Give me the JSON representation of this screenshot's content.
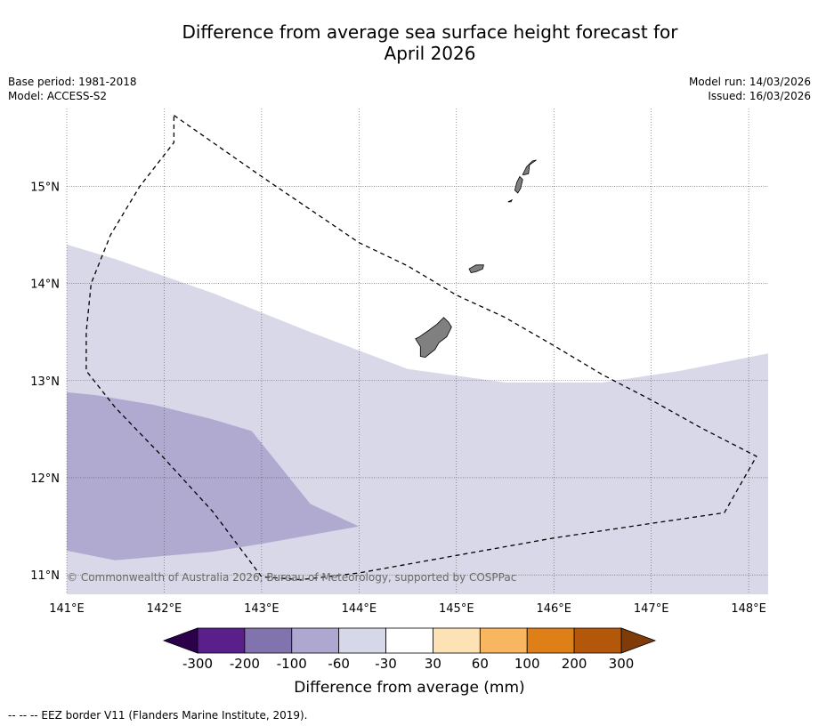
{
  "title": {
    "line1": "Difference from average sea surface height forecast for",
    "line2": "April 2026"
  },
  "meta": {
    "base_period": "Base period: 1981-2018",
    "model": "Model: ACCESS-S2",
    "model_run": "Model run: 14/03/2026",
    "issued": "Issued: 16/03/2026"
  },
  "copyright": "© Commonwealth of Australia 2026, Bureau of Meteorology, supported by COSPPac",
  "footnote": "-- -- -- EEZ border V11 (Flanders Marine Institute, 2019).",
  "colors": {
    "ocean_white": "#ffffff",
    "band_-60_-30": "#d8d8e9",
    "band_-100_-60": "#b0aad0",
    "land": "#808080",
    "eez_line": "#000000"
  },
  "chart_data": {
    "type": "heatmap",
    "title": "Difference from average sea surface height forecast for April 2026",
    "variable": "Sea surface height anomaly",
    "units": "mm",
    "xlim": [
      141.0,
      148.2
    ],
    "ylim": [
      10.8,
      15.8
    ],
    "x_ticks": [
      141,
      142,
      143,
      144,
      145,
      146,
      147,
      148
    ],
    "x_tick_labels": [
      "141°E",
      "142°E",
      "143°E",
      "144°E",
      "145°E",
      "146°E",
      "147°E",
      "148°E"
    ],
    "y_ticks": [
      11,
      12,
      13,
      14,
      15
    ],
    "y_tick_labels": [
      "11°N",
      "12°N",
      "13°N",
      "14°N",
      "15°N"
    ],
    "grid": true,
    "fields": [
      {
        "name": "anomaly -60 to -30 mm",
        "level": "-60 to -30",
        "color": "#d8d8e9",
        "polygon": [
          [
            141.0,
            14.4
          ],
          [
            141.5,
            14.25
          ],
          [
            142.5,
            13.9
          ],
          [
            143.5,
            13.5
          ],
          [
            144.5,
            13.12
          ],
          [
            145.5,
            12.98
          ],
          [
            146.5,
            12.98
          ],
          [
            147.3,
            13.1
          ],
          [
            148.2,
            13.28
          ],
          [
            148.2,
            10.8
          ],
          [
            141.0,
            10.8
          ]
        ]
      },
      {
        "name": "anomaly -100 to -60 mm",
        "level": "-100 to -60",
        "color": "#b0aad0",
        "polygon": [
          [
            141.0,
            12.88
          ],
          [
            141.3,
            12.85
          ],
          [
            141.9,
            12.75
          ],
          [
            142.5,
            12.6
          ],
          [
            142.9,
            12.48
          ],
          [
            143.5,
            11.73
          ],
          [
            144.0,
            11.5
          ],
          [
            143.0,
            11.32
          ],
          [
            142.5,
            11.24
          ],
          [
            141.5,
            11.15
          ],
          [
            141.0,
            11.25
          ]
        ]
      }
    ],
    "colorbar": {
      "label": "Difference from average (mm)",
      "boundaries": [
        "-300",
        "-200",
        "-100",
        "-60",
        "-30",
        "30",
        "60",
        "100",
        "200",
        "300"
      ],
      "colors": [
        "#5a1f8a",
        "#8173ad",
        "#aea7cf",
        "#d7d7ea",
        "#ffffff",
        "#fde2b5",
        "#f8b661",
        "#df7f17",
        "#b3580a"
      ],
      "extend_min_color": "#2d004b",
      "extend_max_color": "#7f3b08"
    },
    "eez_border": {
      "label": "EEZ border V11 (Flanders Marine Institute, 2019)",
      "style": "dashed",
      "points": [
        [
          142.1,
          15.73
        ],
        [
          143.0,
          15.1
        ],
        [
          144.0,
          14.42
        ],
        [
          144.5,
          14.18
        ],
        [
          145.0,
          13.88
        ],
        [
          145.5,
          13.65
        ],
        [
          146.0,
          13.36
        ],
        [
          146.5,
          13.06
        ],
        [
          147.0,
          12.8
        ],
        [
          147.5,
          12.52
        ],
        [
          148.08,
          12.22
        ],
        [
          147.75,
          11.64
        ],
        [
          147.0,
          11.53
        ],
        [
          146.0,
          11.38
        ],
        [
          145.0,
          11.2
        ],
        [
          144.0,
          11.02
        ],
        [
          143.4,
          10.95
        ],
        [
          143.0,
          10.98
        ],
        [
          142.5,
          11.65
        ],
        [
          142.0,
          12.2
        ],
        [
          141.5,
          12.72
        ],
        [
          141.2,
          13.1
        ],
        [
          141.2,
          13.5
        ],
        [
          141.25,
          14.0
        ],
        [
          141.45,
          14.5
        ],
        [
          141.75,
          15.0
        ],
        [
          142.1,
          15.45
        ],
        [
          142.1,
          15.73
        ]
      ]
    },
    "islands": [
      {
        "name": "Guam",
        "points": [
          [
            144.62,
            13.45
          ],
          [
            144.72,
            13.52
          ],
          [
            144.8,
            13.58
          ],
          [
            144.87,
            13.65
          ],
          [
            144.92,
            13.6
          ],
          [
            144.95,
            13.55
          ],
          [
            144.9,
            13.45
          ],
          [
            144.82,
            13.39
          ],
          [
            144.78,
            13.32
          ],
          [
            144.68,
            13.24
          ],
          [
            144.63,
            13.25
          ],
          [
            144.63,
            13.35
          ],
          [
            144.58,
            13.43
          ]
        ]
      },
      {
        "name": "Rota",
        "points": [
          [
            145.13,
            14.15
          ],
          [
            145.2,
            14.19
          ],
          [
            145.28,
            14.19
          ],
          [
            145.27,
            14.15
          ],
          [
            145.2,
            14.12
          ],
          [
            145.15,
            14.11
          ]
        ]
      },
      {
        "name": "Tinian",
        "points": [
          [
            145.6,
            14.96
          ],
          [
            145.62,
            15.04
          ],
          [
            145.65,
            15.1
          ],
          [
            145.68,
            15.07
          ],
          [
            145.66,
            14.98
          ],
          [
            145.63,
            14.93
          ]
        ]
      },
      {
        "name": "Saipan",
        "points": [
          [
            145.68,
            15.12
          ],
          [
            145.72,
            15.2
          ],
          [
            145.78,
            15.26
          ],
          [
            145.82,
            15.27
          ],
          [
            145.75,
            15.22
          ],
          [
            145.74,
            15.13
          ],
          [
            145.7,
            15.12
          ]
        ]
      },
      {
        "name": "Aguijan",
        "points": [
          [
            145.53,
            14.84
          ],
          [
            145.57,
            14.86
          ],
          [
            145.56,
            14.84
          ]
        ]
      }
    ]
  }
}
